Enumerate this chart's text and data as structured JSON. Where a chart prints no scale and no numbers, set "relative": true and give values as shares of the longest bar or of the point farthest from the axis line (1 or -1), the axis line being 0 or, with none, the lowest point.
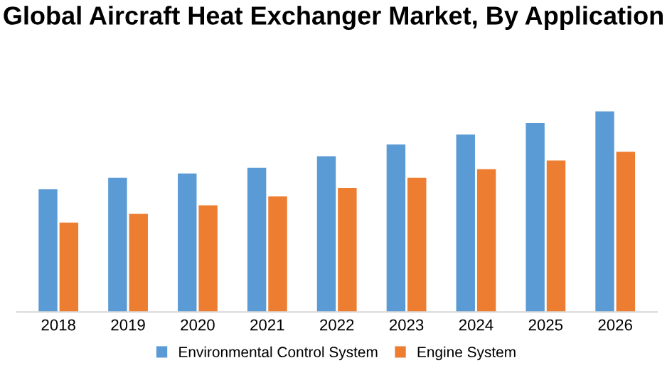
{
  "chart_data": {
    "type": "bar",
    "title": "Global Aircraft Heat Exchanger Market, By Application",
    "relative": true,
    "categories": [
      "2018",
      "2019",
      "2020",
      "2021",
      "2022",
      "2023",
      "2024",
      "2025",
      "2026"
    ],
    "series": [
      {
        "name": "Environmental Control System",
        "color": "#5b9bd5",
        "values": [
          0.612,
          0.669,
          0.691,
          0.719,
          0.777,
          0.835,
          0.885,
          0.942,
          1
        ]
      },
      {
        "name": "Engine System",
        "color": "#ed7d31",
        "values": [
          0.446,
          0.489,
          0.532,
          0.576,
          0.619,
          0.669,
          0.712,
          0.755,
          0.799
        ]
      }
    ],
    "legend": "bottom"
  }
}
